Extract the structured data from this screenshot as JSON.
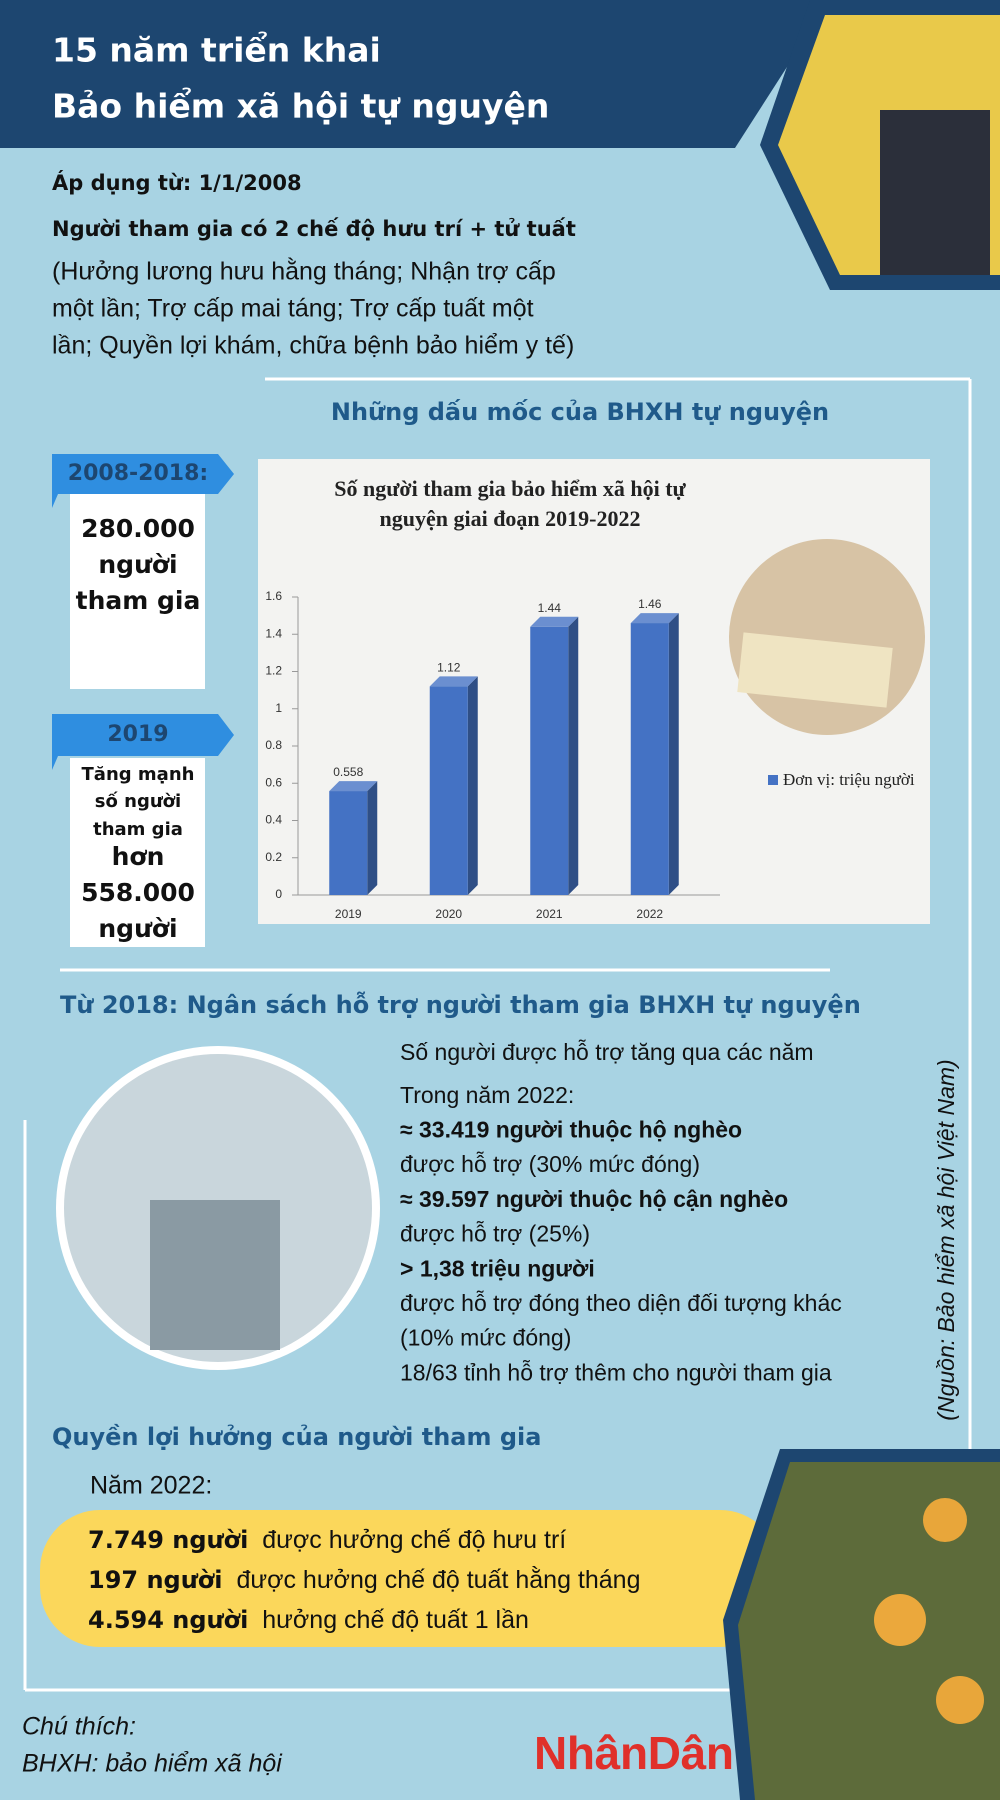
{
  "header": {
    "title": [
      "15 năm triển khai",
      "Bảo hiểm xã hội tự nguyện"
    ]
  },
  "intro": {
    "applied": "Áp dụng từ: 1/1/2008",
    "regimes": "Người tham gia có 2 chế độ hưu trí + tử tuất",
    "details": [
      "(Hưởng lương hưu hằng tháng; Nhận trợ cấp",
      "một lần; Trợ cấp mai táng; Trợ cấp tuất một",
      "lần; Quyền lợi khám, chữa bệnh bảo hiểm y tế)"
    ]
  },
  "milestones": {
    "title": "Những dấu mốc của BHXH tự nguyện",
    "items": [
      {
        "period": "2008-2018:",
        "text": [
          "280.000",
          "người",
          "tham gia"
        ]
      },
      {
        "period": "2019",
        "text": [
          "Tăng mạnh",
          "số người",
          "tham gia",
          "hơn",
          "558.000",
          "người"
        ]
      }
    ]
  },
  "chart_data": {
    "type": "bar",
    "title": "Số người tham gia bảo hiểm xã hội tự nguyện giai đoạn 2019-2022",
    "categories": [
      "2019",
      "2020",
      "2021",
      "2022"
    ],
    "series": [
      {
        "name": "Đơn vị: triệu người",
        "color": "#4472c4",
        "values": [
          0.558,
          1.12,
          1.44,
          1.46
        ]
      }
    ],
    "ylim": [
      0,
      1.6
    ],
    "yticks": [
      0,
      0.2,
      0.4,
      0.6,
      0.8,
      1,
      1.2,
      1.4,
      1.6
    ],
    "grid": false
  },
  "support": {
    "title": "Từ 2018: Ngân sách hỗ trợ người tham gia BHXH tự nguyện",
    "lines": [
      {
        "text": "Số người được hỗ trợ tăng qua các năm",
        "bold": false
      },
      {
        "text": "Trong năm 2022:",
        "bold": false
      },
      {
        "text": "≈ 33.419 người thuộc hộ nghèo",
        "bold": true
      },
      {
        "text": "được hỗ trợ (30% mức đóng)",
        "bold": false
      },
      {
        "text": "≈ 39.597 người thuộc hộ cận nghèo",
        "bold": true
      },
      {
        "text": "được hỗ trợ (25%)",
        "bold": false
      },
      {
        "text": "> 1,38 triệu người",
        "bold": true
      },
      {
        "text": "được hỗ trợ đóng theo diện đối tượng khác",
        "bold": false
      },
      {
        "text": "(10% mức đóng)",
        "bold": false
      },
      {
        "text": "18/63 tỉnh hỗ trợ thêm cho người tham gia",
        "bold": false
      }
    ]
  },
  "benefits": {
    "title": "Quyền lợi hưởng của người tham gia",
    "year": "Năm 2022:",
    "items": [
      {
        "count": "7.749 người",
        "text": "được hưởng chế độ hưu trí"
      },
      {
        "count": "197 người",
        "text": "được hưởng chế độ tuất hằng tháng"
      },
      {
        "count": "4.594 người",
        "text": "hưởng chế độ tuất 1 lần"
      }
    ]
  },
  "source": "(Nguồn: Bảo hiểm xã hội Việt Nam)",
  "notes": {
    "label": "Chú thích:",
    "text": "BHXH: bảo hiểm xã hội"
  },
  "logo": "NhânDân"
}
